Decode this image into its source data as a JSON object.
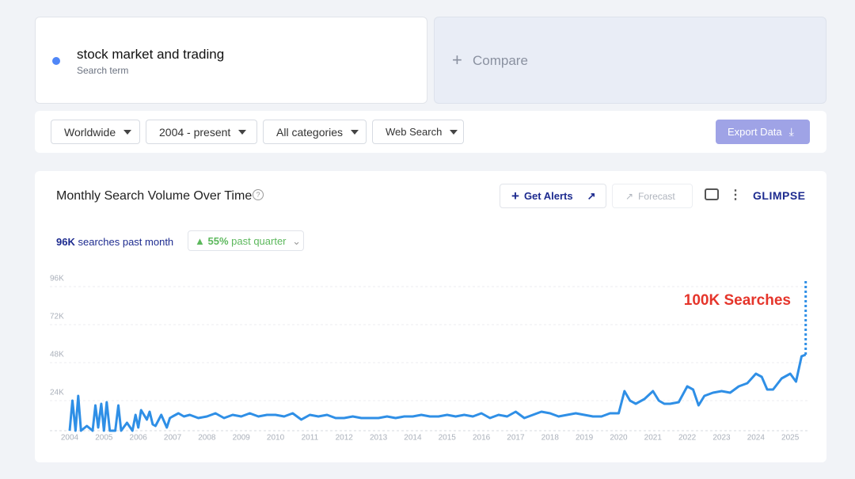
{
  "search": {
    "term": "stock market and trading",
    "subtitle": "Search term",
    "compare": "Compare"
  },
  "filters": {
    "region": "Worldwide",
    "period": "2004 - present",
    "category": "All categories",
    "source": "Web Search",
    "export": "Export Data"
  },
  "panel": {
    "title": "Monthly Search Volume Over Time",
    "alerts": "Get Alerts",
    "forecast": "Forecast",
    "brand": "GLIMPSE",
    "past_month_value": "96K",
    "past_month_label": "searches past month",
    "quarter_change": "55%",
    "quarter_label": "past quarter"
  },
  "chart_data": {
    "type": "line",
    "annotation": "100K Searches",
    "ylim": [
      0,
      96000
    ],
    "yticks": [
      {
        "value": 24000,
        "label": "24K"
      },
      {
        "value": 48000,
        "label": "48K"
      },
      {
        "value": 72000,
        "label": "72K"
      },
      {
        "value": 96000,
        "label": "96K"
      }
    ],
    "xlim": [
      2003.7,
      2025.55
    ],
    "xticks": [
      2004,
      2005,
      2006,
      2007,
      2008,
      2009,
      2010,
      2011,
      2012,
      2013,
      2014,
      2015,
      2016,
      2017,
      2018,
      2019,
      2020,
      2021,
      2022,
      2023,
      2024,
      2025
    ],
    "grid": true,
    "series": [
      {
        "color": "#2f8fe6",
        "x": [
          2004.0,
          2004.08,
          2004.17,
          2004.25,
          2004.33,
          2004.5,
          2004.67,
          2004.75,
          2004.83,
          2004.92,
          2005.0,
          2005.08,
          2005.17,
          2005.33,
          2005.42,
          2005.5,
          2005.67,
          2005.83,
          2005.92,
          2006.0,
          2006.08,
          2006.25,
          2006.33,
          2006.42,
          2006.5,
          2006.67,
          2006.83,
          2006.92,
          2007.0,
          2007.17,
          2007.33,
          2007.5,
          2007.75,
          2008.0,
          2008.25,
          2008.5,
          2008.75,
          2009.0,
          2009.25,
          2009.5,
          2009.75,
          2010.0,
          2010.25,
          2010.5,
          2010.75,
          2011.0,
          2011.25,
          2011.5,
          2011.75,
          2012.0,
          2012.25,
          2012.5,
          2012.75,
          2013.0,
          2013.25,
          2013.5,
          2013.75,
          2014.0,
          2014.25,
          2014.5,
          2014.75,
          2015.0,
          2015.25,
          2015.5,
          2015.75,
          2016.0,
          2016.25,
          2016.5,
          2016.75,
          2017.0,
          2017.25,
          2017.5,
          2017.75,
          2018.0,
          2018.25,
          2018.5,
          2018.75,
          2019.0,
          2019.25,
          2019.5,
          2019.75,
          2020.0,
          2020.17,
          2020.33,
          2020.5,
          2020.75,
          2021.0,
          2021.17,
          2021.33,
          2021.5,
          2021.75,
          2022.0,
          2022.17,
          2022.33,
          2022.5,
          2022.75,
          2023.0,
          2023.25,
          2023.5,
          2023.75,
          2024.0,
          2024.17,
          2024.33,
          2024.5,
          2024.75,
          2025.0,
          2025.17,
          2025.33,
          2025.45
        ],
        "values": [
          0,
          19000,
          0,
          22000,
          0,
          3000,
          0,
          16000,
          2000,
          17000,
          0,
          18000,
          0,
          0,
          16000,
          0,
          5000,
          0,
          10000,
          2000,
          13000,
          7000,
          12000,
          4000,
          3000,
          10000,
          2000,
          8000,
          9000,
          11000,
          9000,
          10000,
          8000,
          9000,
          11000,
          8000,
          10000,
          9000,
          11000,
          9000,
          10000,
          10000,
          9000,
          11000,
          7000,
          10000,
          9000,
          10000,
          8000,
          8000,
          9000,
          8000,
          8000,
          8000,
          9000,
          8000,
          9000,
          9000,
          10000,
          9000,
          9000,
          10000,
          9000,
          10000,
          9000,
          11000,
          8000,
          10000,
          9000,
          12000,
          8000,
          10000,
          12000,
          11000,
          9000,
          10000,
          11000,
          10000,
          9000,
          9000,
          11000,
          11000,
          25000,
          19000,
          17000,
          20000,
          25000,
          19000,
          17000,
          17000,
          18000,
          28000,
          26000,
          16000,
          22000,
          24000,
          25000,
          24000,
          28000,
          30000,
          36000,
          34000,
          26000,
          26000,
          33000,
          36000,
          31000,
          47000,
          48000
        ]
      },
      {
        "color": "#2f8fe6",
        "dashed": true,
        "x": [
          2025.45,
          2025.45
        ],
        "values": [
          48000,
          95000
        ]
      }
    ]
  }
}
